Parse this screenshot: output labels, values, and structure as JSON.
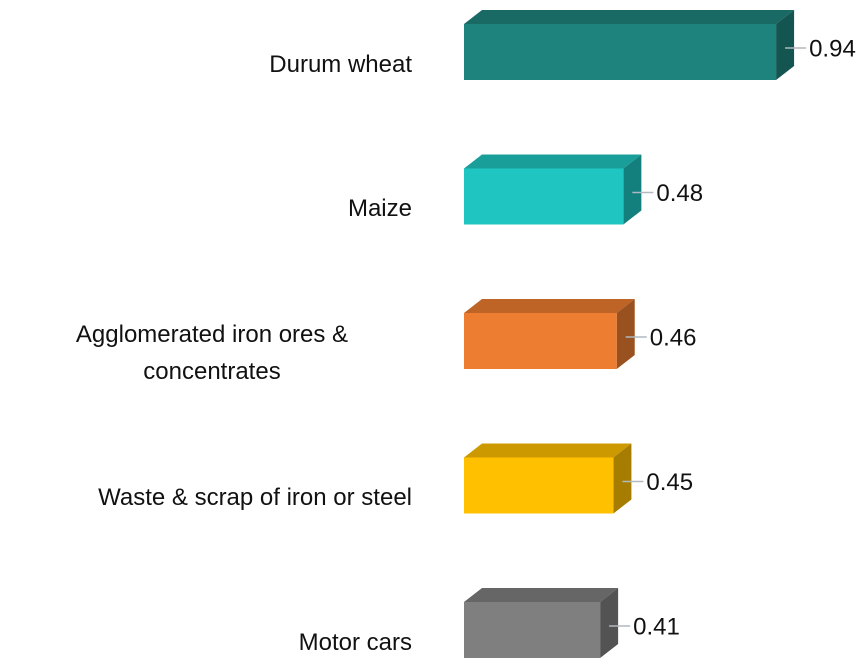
{
  "chart_data": {
    "type": "bar3d-horizontal",
    "categories": [
      "Durum wheat",
      "Maize",
      "Agglomerated iron ores & concentrates",
      "Waste & scrap of iron or steel",
      "Motor cars"
    ],
    "values": [
      0.94,
      0.48,
      0.46,
      0.45,
      0.41
    ],
    "colors": [
      "#1f837d",
      "#1fc5c0",
      "#ed7d31",
      "#ffc000",
      "#7f7f7f"
    ]
  }
}
